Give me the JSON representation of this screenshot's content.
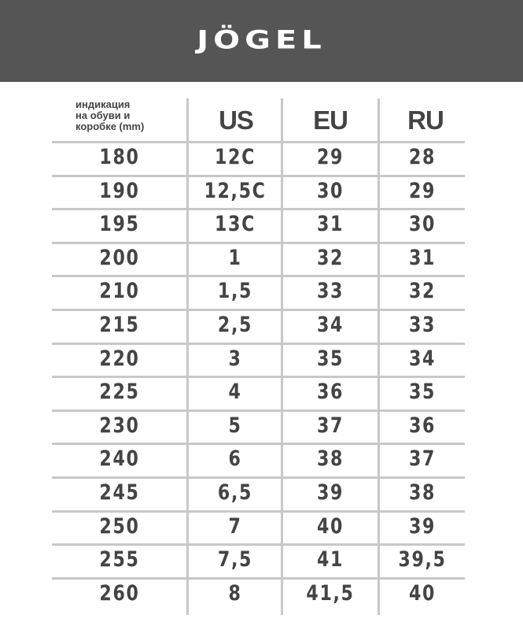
{
  "brand": {
    "logo_text": "JÖGEL",
    "banner_color": "#555555"
  },
  "table": {
    "headers": {
      "mm": "индикация на обуви и коробке (mm)",
      "mm_lines": [
        "индикация",
        "на обуви и",
        "коробке (mm)"
      ],
      "us": "US",
      "eu": "EU",
      "ru": "RU"
    },
    "rows": [
      [
        "180",
        "12C",
        "29",
        "28"
      ],
      [
        "190",
        "12,5C",
        "30",
        "29"
      ],
      [
        "195",
        "13C",
        "31",
        "30"
      ],
      [
        "200",
        "1",
        "32",
        "31"
      ],
      [
        "210",
        "1,5",
        "33",
        "32"
      ],
      [
        "215",
        "2,5",
        "34",
        "33"
      ],
      [
        "220",
        "3",
        "35",
        "34"
      ],
      [
        "225",
        "4",
        "36",
        "35"
      ],
      [
        "230",
        "5",
        "37",
        "36"
      ],
      [
        "240",
        "6",
        "38",
        "37"
      ],
      [
        "245",
        "6,5",
        "39",
        "38"
      ],
      [
        "250",
        "7",
        "40",
        "39"
      ],
      [
        "255",
        "7,5",
        "41",
        "39,5"
      ],
      [
        "260",
        "8",
        "41,5",
        "40"
      ]
    ]
  }
}
